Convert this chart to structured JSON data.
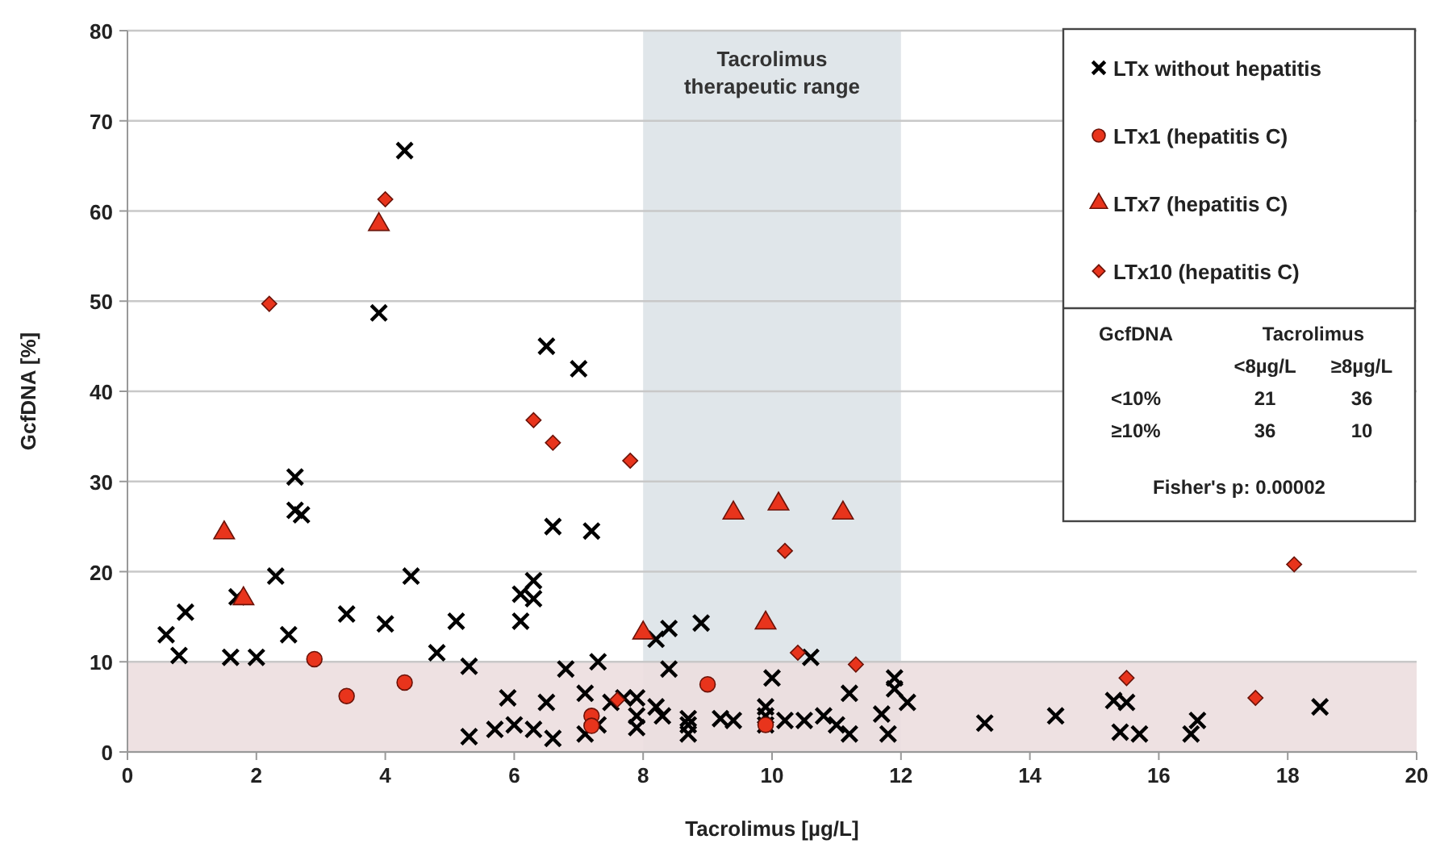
{
  "chart_data": {
    "type": "scatter",
    "xlabel": "Tacrolimus [µg/L]",
    "ylabel": "GcfDNA [%]",
    "xlim": [
      0,
      20
    ],
    "ylim": [
      0,
      80
    ],
    "xticks": [
      0,
      2,
      4,
      6,
      8,
      10,
      12,
      14,
      16,
      18,
      20
    ],
    "yticks": [
      0,
      10,
      20,
      30,
      40,
      50,
      60,
      70,
      80
    ],
    "grid": "y",
    "legend": "top right",
    "bands": [
      {
        "axis": "x",
        "from": 8,
        "to": 12,
        "label": "Tacrolimus therapeutic range",
        "color": "#dde3e8"
      },
      {
        "axis": "y",
        "from": 0,
        "to": 10,
        "color": "#ecdedf"
      }
    ],
    "annotations": [
      "GcfDNA",
      "Tacrolimus",
      "<8µg/L",
      "≥8µg/L",
      "<10%",
      "21",
      "36",
      "≥10%",
      "36",
      "10",
      "Fisher's p: 0.00002"
    ],
    "series": [
      {
        "name": "LTx without hepatitis",
        "color": "#000000",
        "marker": "cross",
        "x": [
          0.6,
          0.8,
          0.9,
          1.6,
          1.7,
          2.0,
          2.3,
          2.5,
          2.6,
          2.6,
          2.7,
          3.4,
          4.0,
          3.9,
          4.3,
          4.4,
          4.8,
          5.1,
          5.3,
          5.3,
          5.7,
          5.9,
          6.0,
          6.1,
          6.1,
          6.3,
          6.3,
          6.3,
          6.5,
          6.5,
          6.6,
          6.6,
          6.8,
          7.0,
          7.1,
          7.1,
          7.2,
          7.3,
          7.3,
          7.5,
          7.7,
          7.9,
          7.9,
          7.9,
          8.2,
          8.2,
          8.3,
          8.4,
          8.4,
          8.7,
          8.7,
          8.7,
          8.9,
          9.2,
          9.4,
          9.9,
          9.9,
          9.9,
          10.0,
          10.2,
          10.6,
          10.5,
          10.8,
          11.0,
          11.2,
          11.2,
          11.7,
          11.8,
          11.9,
          11.9,
          12.1,
          13.3,
          14.4,
          15.3,
          15.4,
          15.5,
          15.7,
          16.5,
          16.6,
          18.5
        ],
        "values": [
          13,
          10.7,
          15.5,
          10.5,
          17.2,
          10.5,
          19.5,
          13,
          30.5,
          26.8,
          26.3,
          15.3,
          14.2,
          48.7,
          66.7,
          19.5,
          11,
          14.5,
          9.5,
          1.7,
          2.5,
          6,
          3,
          14.5,
          17.5,
          17,
          19,
          2.5,
          45,
          5.5,
          1.5,
          25,
          9.2,
          42.5,
          2,
          6.5,
          24.5,
          10,
          3,
          5.5,
          6,
          4,
          2.7,
          6,
          12.5,
          5,
          4,
          13.7,
          9.2,
          2,
          3,
          3.7,
          14.3,
          3.7,
          3.5,
          5,
          4,
          3,
          8.2,
          3.5,
          10.5,
          3.5,
          4,
          3,
          6.5,
          2,
          4.2,
          2,
          8.2,
          7,
          5.5,
          3.2,
          4,
          5.7,
          2.2,
          5.5,
          2,
          2,
          3.5,
          5
        ]
      },
      {
        "name": "LTx1 (hepatitis C)",
        "color": "#e8341c",
        "marker": "circle",
        "x": [
          2.9,
          3.4,
          4.3,
          7.2,
          7.2,
          9.0,
          9.9
        ],
        "values": [
          10.3,
          6.2,
          7.7,
          4,
          2.9,
          7.5,
          3
        ]
      },
      {
        "name": "LTx7 (hepatitis C)",
        "color": "#e8341c",
        "marker": "triangle",
        "x": [
          1.5,
          1.8,
          3.9,
          8.0,
          9.4,
          10.1,
          11.1,
          9.9
        ],
        "values": [
          24.3,
          17,
          58.5,
          13.2,
          26.5,
          27.5,
          26.5,
          14.3
        ]
      },
      {
        "name": "LTx10 (hepatitis C)",
        "color": "#e8341c",
        "marker": "diamond",
        "x": [
          2.2,
          4.0,
          6.3,
          6.6,
          7.8,
          10.2,
          10.4,
          11.3,
          15.5,
          17.5,
          18.1,
          7.6
        ],
        "values": [
          49.7,
          61.3,
          36.8,
          34.3,
          32.3,
          22.3,
          11,
          9.7,
          8.2,
          6,
          20.8,
          5.8
        ]
      }
    ]
  }
}
